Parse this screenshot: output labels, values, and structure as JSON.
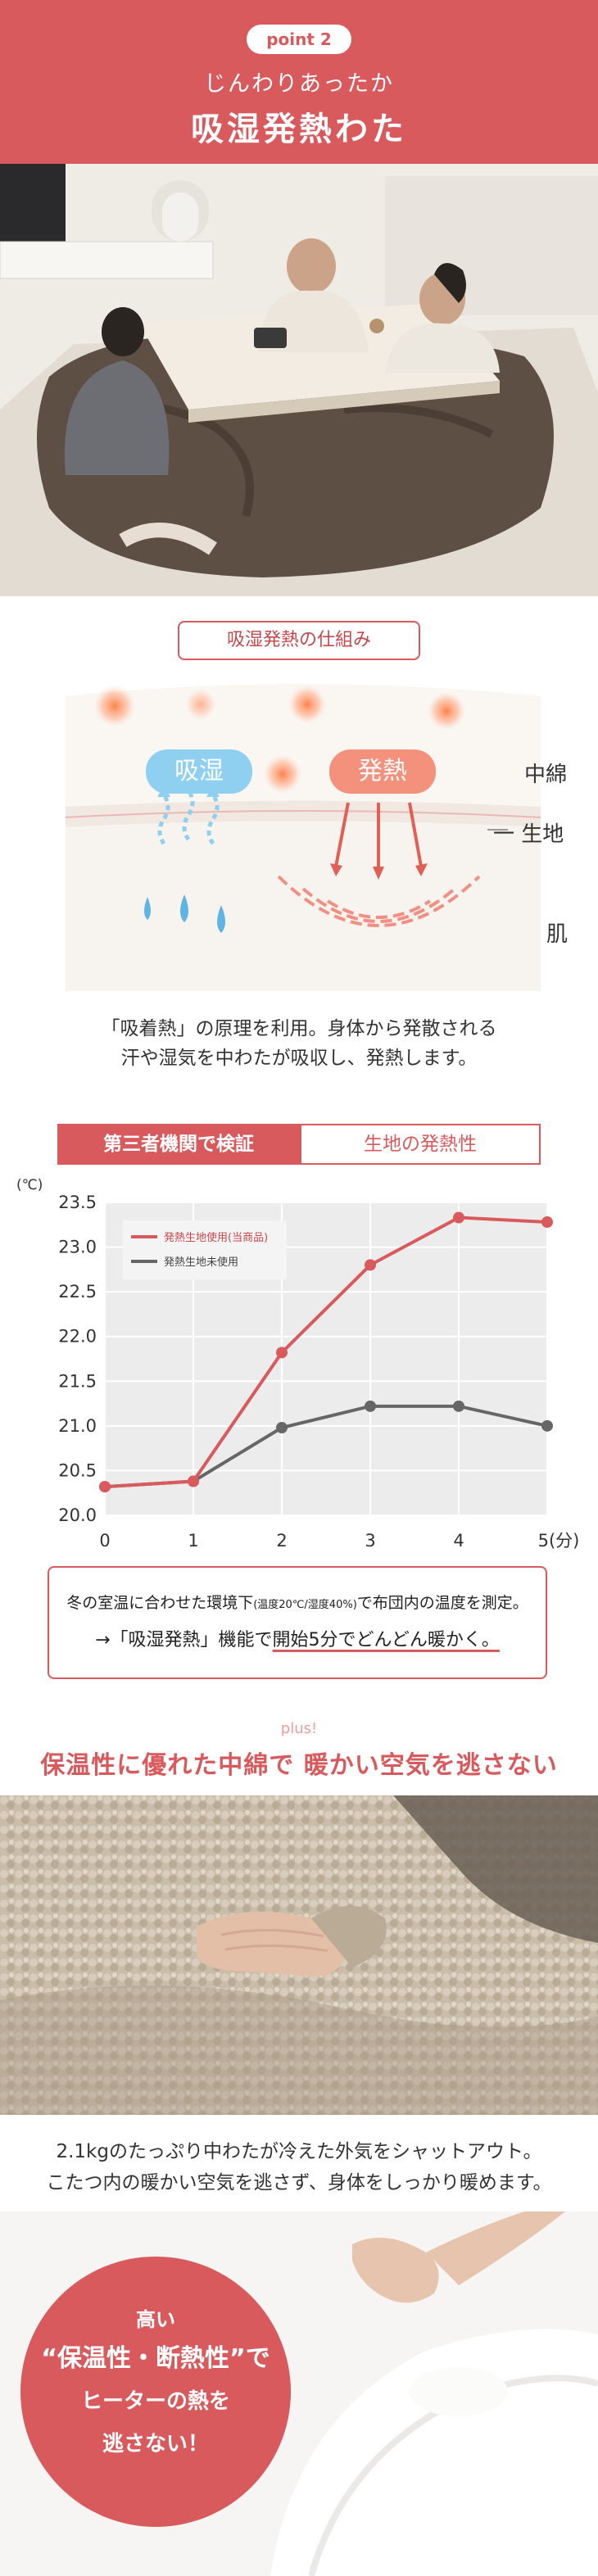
{
  "header": {
    "pill": "point 2",
    "subtitle": "じんわりあったか",
    "title": "吸湿発熱わた"
  },
  "mechanism": {
    "label": "吸湿発熱の仕組み",
    "absorb_badge": "吸湿",
    "heat_badge": "発熱",
    "layers": {
      "filling": "中綿",
      "fabric": "一 生地",
      "skin": "肌"
    },
    "description": [
      "「吸着熱」の原理を利用。身体から発散される",
      "汗や湿気を中わたが吸収し、発熱します。"
    ]
  },
  "graph_tabs": {
    "active": "第三者機関で検証",
    "inactive": "生地の発熱性"
  },
  "chart_data": {
    "type": "line",
    "x": [
      0,
      1,
      2,
      3,
      4,
      5
    ],
    "ylabel": "(℃)",
    "xlabel": "(分)",
    "ylim": [
      20.0,
      23.5
    ],
    "yticks": [
      "20.0",
      "20.5",
      "21.0",
      "21.5",
      "22.0",
      "22.5",
      "23.0",
      "23.5"
    ],
    "xticks": [
      "0",
      "1",
      "2",
      "3",
      "4",
      "5(分)"
    ],
    "grid": true,
    "legend_position": "top-left",
    "series": [
      {
        "name": "発熱生地使用(当商品)",
        "color": "#d95a5d",
        "values": [
          20.32,
          20.38,
          21.82,
          22.8,
          23.33,
          23.28
        ]
      },
      {
        "name": "発熱生地未使用",
        "color": "#666666",
        "values": [
          20.32,
          20.38,
          20.98,
          21.22,
          21.22,
          21.0
        ]
      }
    ]
  },
  "note": {
    "line1_pre": "冬の室温に合わせた環境下",
    "line1_small": "(温度20℃/湿度40%)",
    "line1_post": "で布団内の温度を測定。",
    "line2_pre": "→「吸湿発熱」機能で",
    "line2_emph": "開始5分でどんどん暖かく。"
  },
  "plus": {
    "tag": "plus!",
    "headline": "保温性に優れた中綿で 暖かい空気を逃さない",
    "description": [
      "2.1kgのたっぷり中わたが冷えた外気をシャットアウト。",
      "こたつ内の暖かい空気を逃さず、身体をしっかり暖めます。"
    ]
  },
  "circle": {
    "line1": "高い",
    "line2": "“保温性・断熱性”で",
    "line3": "ヒーターの熱を",
    "line4": "逃さない！"
  },
  "colors": {
    "accent": "#d95a5d",
    "absorb": "#8fd0f0",
    "heat": "#f4917c"
  }
}
